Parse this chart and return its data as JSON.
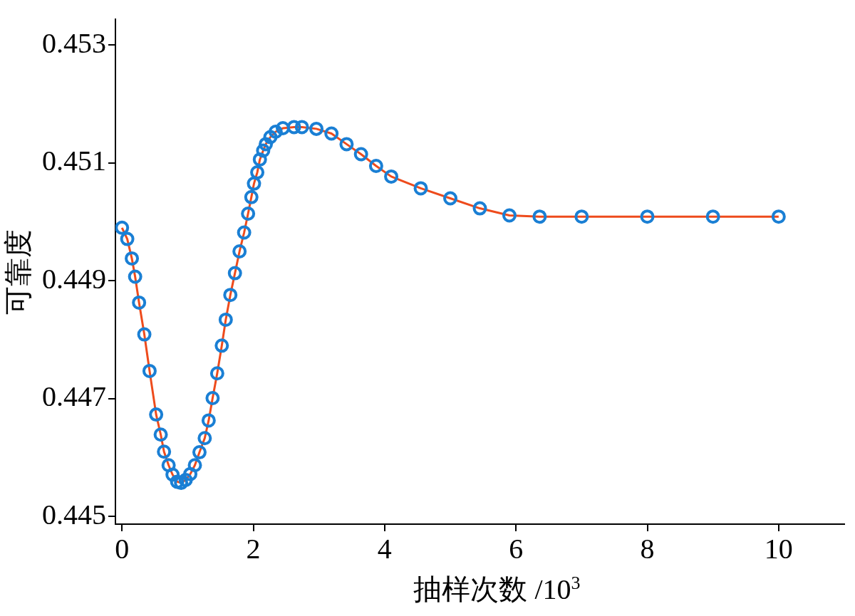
{
  "chart_data": {
    "type": "line",
    "xlabel": "抽样次数 /10$^{3}$",
    "ylabel": "可靠度",
    "x": [
      0,
      0.08,
      0.15,
      0.2,
      0.26,
      0.34,
      0.42,
      0.52,
      0.59,
      0.64,
      0.71,
      0.77,
      0.84,
      0.9,
      0.97,
      1.04,
      1.11,
      1.18,
      1.26,
      1.32,
      1.38,
      1.45,
      1.52,
      1.58,
      1.65,
      1.72,
      1.79,
      1.86,
      1.92,
      1.97,
      2.01,
      2.06,
      2.1,
      2.15,
      2.19,
      2.26,
      2.34,
      2.45,
      2.62,
      2.74,
      2.96,
      3.19,
      3.42,
      3.64,
      3.87,
      4.1,
      4.55,
      5.0,
      5.45,
      5.9,
      6.36,
      7,
      8,
      9,
      10
    ],
    "series": [
      {
        "marker": "none",
        "color": "#ee4b1c",
        "values": [
          0.4499,
          0.44971,
          0.44938,
          0.44907,
          0.44863,
          0.44809,
          0.44747,
          0.44673,
          0.44639,
          0.4461,
          0.44587,
          0.44571,
          0.44559,
          0.44557,
          0.44562,
          0.44572,
          0.44587,
          0.44609,
          0.44633,
          0.44663,
          0.44701,
          0.44743,
          0.4479,
          0.44834,
          0.44876,
          0.44913,
          0.4495,
          0.44982,
          0.45014,
          0.45042,
          0.45065,
          0.45084,
          0.45106,
          0.45121,
          0.45132,
          0.45144,
          0.45153,
          0.45159,
          0.45161,
          0.45161,
          0.45158,
          0.4515,
          0.45132,
          0.45115,
          0.45095,
          0.45077,
          0.45057,
          0.4504,
          0.45023,
          0.45011,
          0.45009,
          0.45009,
          0.45009,
          0.45009,
          0.45009
        ]
      },
      {
        "type": "scatter",
        "marker": "circle",
        "color": "#1a7fd4",
        "values": [
          0.4499,
          0.44971,
          0.44938,
          0.44907,
          0.44863,
          0.44809,
          0.44747,
          0.44673,
          0.44639,
          0.4461,
          0.44587,
          0.44571,
          0.44559,
          0.44557,
          0.44562,
          0.44572,
          0.44587,
          0.44609,
          0.44633,
          0.44663,
          0.44701,
          0.44743,
          0.4479,
          0.44834,
          0.44876,
          0.44913,
          0.4495,
          0.44982,
          0.45014,
          0.45042,
          0.45065,
          0.45084,
          0.45106,
          0.45121,
          0.45132,
          0.45144,
          0.45153,
          0.45159,
          0.45161,
          0.45161,
          0.45158,
          0.4515,
          0.45132,
          0.45115,
          0.45095,
          0.45077,
          0.45057,
          0.4504,
          0.45023,
          0.45011,
          0.45009,
          0.45009,
          0.45009,
          0.45009,
          0.45009
        ]
      }
    ],
    "xlim": [
      -0.1,
      11
    ],
    "xticks": [
      0,
      2,
      4,
      6,
      8,
      10
    ],
    "ylim": [
      0.44487,
      0.45344
    ],
    "yticks": [
      0.445,
      0.447,
      0.449,
      0.451,
      0.453
    ],
    "grid": false,
    "legend": false
  }
}
